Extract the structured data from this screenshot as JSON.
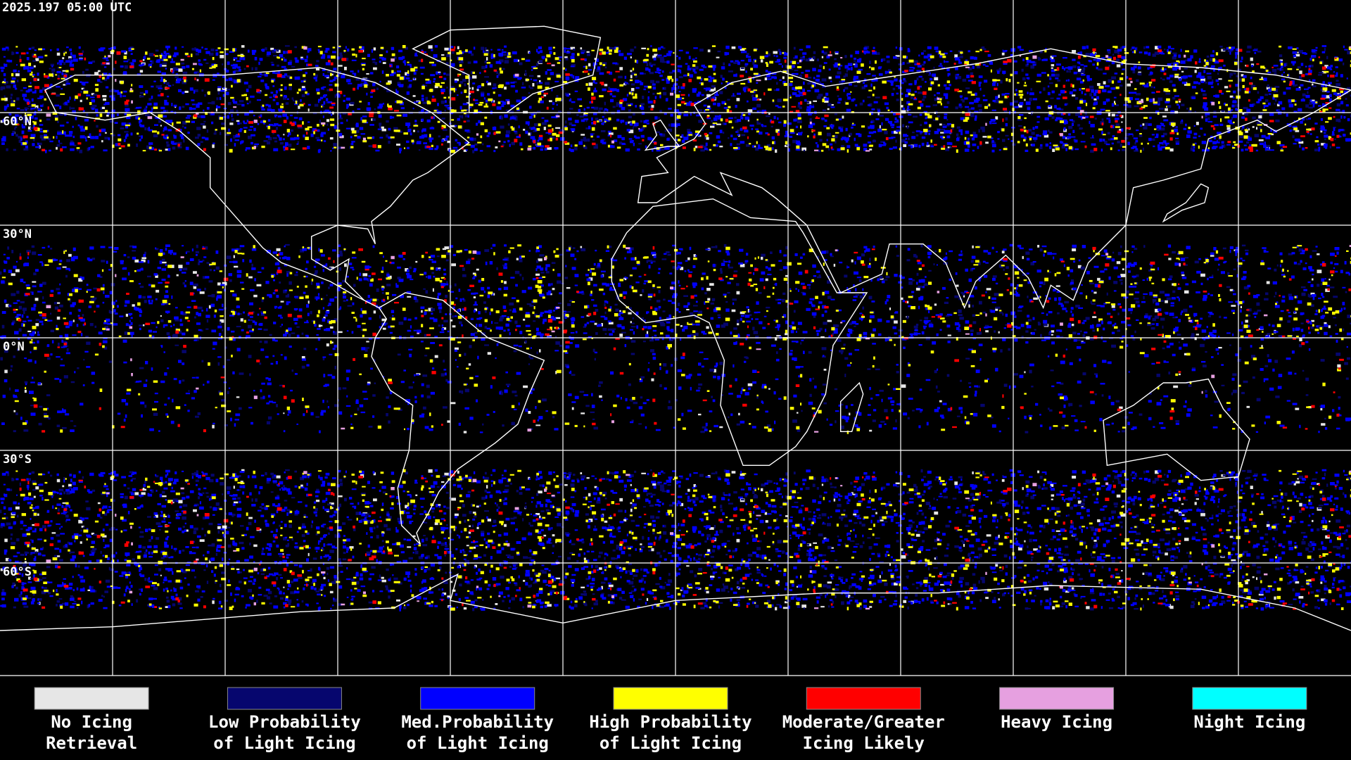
{
  "header": {
    "timestamp": "2025.197 05:00 UTC"
  },
  "map": {
    "latitude_labels": [
      "60°N",
      "30°N",
      "0°N",
      "30°S",
      "60°S"
    ]
  },
  "legend": [
    {
      "lines": [
        "No Icing",
        "Retrieval"
      ],
      "color": "#e6e6e6"
    },
    {
      "lines": [
        "Low Probability",
        "of Light Icing"
      ],
      "color": "#06066e"
    },
    {
      "lines": [
        "Med.Probability",
        "of Light Icing"
      ],
      "color": "#0000ff"
    },
    {
      "lines": [
        "High Probability",
        "of Light Icing"
      ],
      "color": "#ffff00"
    },
    {
      "lines": [
        "Moderate/Greater",
        "Icing Likely"
      ],
      "color": "#ff0000"
    },
    {
      "lines": [
        "Heavy Icing"
      ],
      "color": "#e6a0e0"
    },
    {
      "lines": [
        "Night Icing"
      ],
      "color": "#00ffff"
    }
  ]
}
